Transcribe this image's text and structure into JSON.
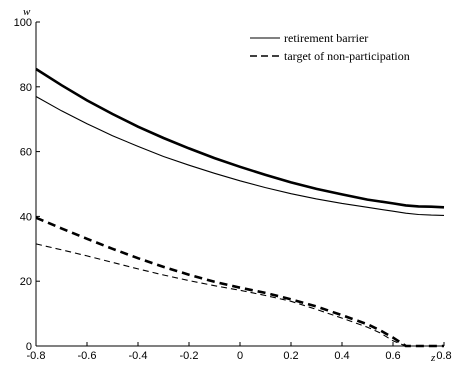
{
  "chart_data": {
    "type": "line",
    "xlabel": "z",
    "ylabel": "w",
    "xlim": [
      -0.8,
      0.8
    ],
    "ylim": [
      0,
      100
    ],
    "xticks": [
      "-0.8",
      "-0.6",
      "-0.4",
      "-0.2",
      "0",
      "0.2",
      "0.4",
      "0.6",
      "0.8"
    ],
    "yticks": [
      "0",
      "20",
      "40",
      "60",
      "80",
      "100"
    ],
    "grid": false,
    "legend_position": "top-right",
    "legend": [
      {
        "label": "retirement barrier",
        "style": "solid"
      },
      {
        "label": "target of non-participation",
        "style": "dashed"
      }
    ],
    "x": [
      -0.8,
      -0.7,
      -0.6,
      -0.5,
      -0.4,
      -0.3,
      -0.2,
      -0.1,
      0.0,
      0.1,
      0.2,
      0.3,
      0.4,
      0.5,
      0.55,
      0.6,
      0.65,
      0.7,
      0.75,
      0.8
    ],
    "series": [
      {
        "style": "solid",
        "weight": "thick",
        "values": [
          85.5,
          80.5,
          75.8,
          71.6,
          67.7,
          64.2,
          61.0,
          58.0,
          55.3,
          52.8,
          50.5,
          48.5,
          46.8,
          45.2,
          44.6,
          44.0,
          43.4,
          43.1,
          43.0,
          42.8
        ]
      },
      {
        "style": "solid",
        "weight": "thin",
        "values": [
          77.0,
          72.6,
          68.6,
          64.9,
          61.6,
          58.5,
          55.8,
          53.3,
          51.0,
          48.9,
          47.0,
          45.4,
          44.0,
          42.8,
          42.2,
          41.6,
          41.0,
          40.6,
          40.4,
          40.3
        ]
      },
      {
        "style": "dashed",
        "weight": "thick",
        "values": [
          39.6,
          36.3,
          33.1,
          30.0,
          27.1,
          24.4,
          22.0,
          19.8,
          18.0,
          16.4,
          14.4,
          12.2,
          9.5,
          6.7,
          4.8,
          2.6,
          0,
          0,
          0,
          0
        ]
      },
      {
        "style": "dashed",
        "weight": "thin",
        "values": [
          31.5,
          29.7,
          27.8,
          25.8,
          23.8,
          21.9,
          20.2,
          18.6,
          17.2,
          15.6,
          13.8,
          11.3,
          8.6,
          5.8,
          4.0,
          1.6,
          0,
          0,
          0,
          0
        ]
      }
    ]
  }
}
